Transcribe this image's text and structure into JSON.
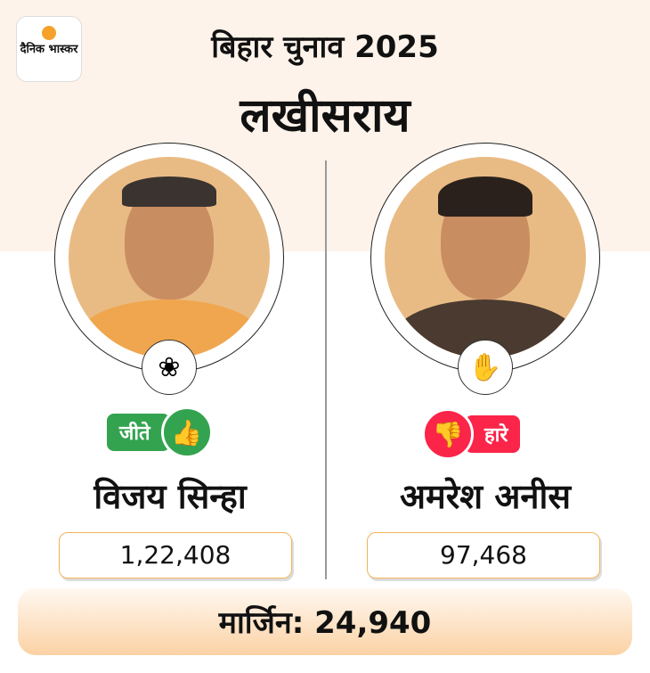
{
  "brand": {
    "logo_text": "दैनिक भास्कर",
    "sun_color": "#f5a12a"
  },
  "header": {
    "title": "बिहार चुनाव 2025",
    "constituency": "लखीसराय"
  },
  "candidates": [
    {
      "name": "विजय सिन्हा",
      "status": "जीते",
      "status_color": "#33a350",
      "status_icon": "thumbs-up-icon",
      "party_symbol": "lotus-icon",
      "votes": "1,22,408"
    },
    {
      "name": "अमरेश अनीस",
      "status": "हारे",
      "status_color": "#fb2449",
      "status_icon": "thumbs-down-icon",
      "party_symbol": "hand-icon",
      "votes": "97,468"
    }
  ],
  "margin": {
    "label": "मार्जिन: 24,940"
  }
}
